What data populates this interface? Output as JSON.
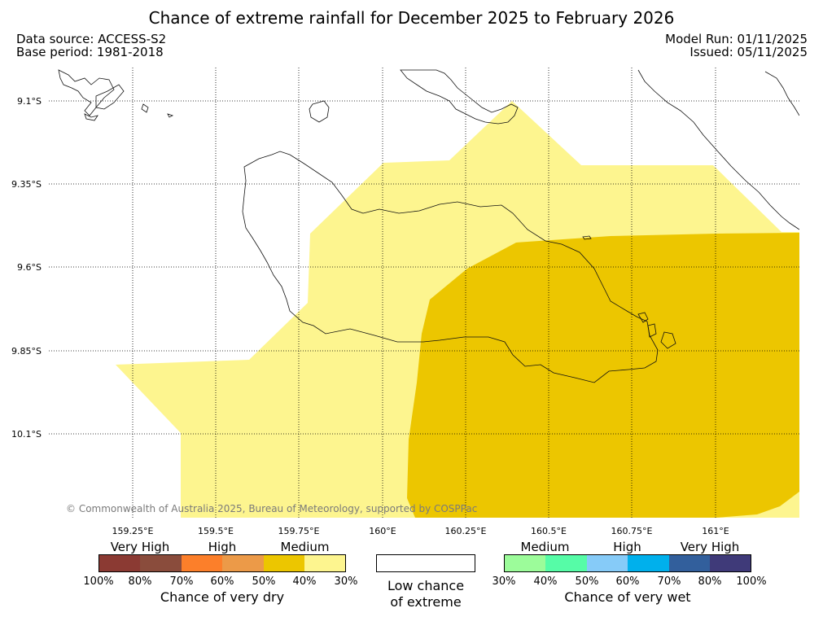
{
  "title": "Chance of extreme rainfall for December 2025 to February 2026",
  "header": {
    "data_source": "Data source: ACCESS-S2",
    "base_period": "Base period: 1981-2018",
    "model_run": "Model Run: 01/11/2025",
    "issued": "Issued: 05/11/2025"
  },
  "map": {
    "lat_labels": [
      "9.1°S",
      "9.35°S",
      "9.6°S",
      "9.85°S",
      "10.1°S"
    ],
    "lon_labels": [
      "159.25°E",
      "159.5°E",
      "159.75°E",
      "160°E",
      "160.25°E",
      "160.5°E",
      "160.75°E",
      "161°E"
    ],
    "regions": [
      {
        "category": "Medium dry (30-40%)",
        "color": "#fdf58f"
      },
      {
        "category": "Medium dry (40-50%)",
        "color": "#ecc600"
      }
    ],
    "copyright": "© Commonwealth of Australia 2025, Bureau of Meteorology, supported by COSPPac"
  },
  "legend": {
    "dry": {
      "categories": [
        "Very High",
        "High",
        "Medium"
      ],
      "colors": [
        "#8b3a33",
        "#8a4c3c",
        "#fc7f2a",
        "#ec9a48",
        "#ecc600",
        "#fdf58f"
      ],
      "ticks": [
        "100%",
        "80%",
        "70%",
        "60%",
        "50%",
        "40%",
        "30%"
      ],
      "caption": "Chance of very dry"
    },
    "neutral": {
      "color": "#ffffff",
      "caption_line1": "Low chance",
      "caption_line2": "of extreme"
    },
    "wet": {
      "categories": [
        "Medium",
        "High",
        "Very High"
      ],
      "colors": [
        "#9cfc9a",
        "#56fca7",
        "#86cbf8",
        "#00b0ec",
        "#325f9c",
        "#3f3a79"
      ],
      "ticks": [
        "30%",
        "40%",
        "50%",
        "60%",
        "70%",
        "80%",
        "100%"
      ],
      "caption": "Chance of very wet"
    }
  }
}
